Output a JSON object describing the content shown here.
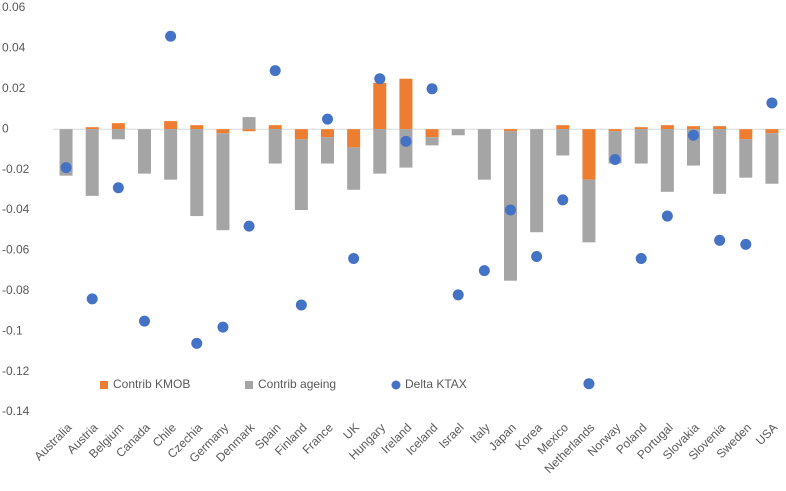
{
  "chart_data": {
    "type": "bar",
    "categories": [
      "Australia",
      "Austria",
      "Belgium",
      "Canada",
      "Chile",
      "Czechia",
      "Germany",
      "Denmark",
      "Spain",
      "Finland",
      "France",
      "UK",
      "Hungary",
      "Ireland",
      "Iceland",
      "Israel",
      "Italy",
      "Japan",
      "Korea",
      "Mexico",
      "Netherlands",
      "Norway",
      "Poland",
      "Portugal",
      "Slovakia",
      "Slovenia",
      "Sweden",
      "USA"
    ],
    "series": [
      {
        "name": "Contrib KMOB",
        "type": "bar",
        "color": "#ed7d31",
        "values": [
          0,
          0.001,
          0.003,
          0,
          0.004,
          0.002,
          -0.002,
          -0.001,
          0.002,
          -0.005,
          -0.004,
          -0.009,
          0.023,
          0.025,
          -0.004,
          0,
          0,
          -0.001,
          0,
          0.002,
          -0.025,
          -0.001,
          0.001,
          0.002,
          0.0015,
          0.0015,
          -0.005,
          -0.002
        ]
      },
      {
        "name": "Contrib ageing",
        "type": "bar",
        "color": "#a5a5a5",
        "values": [
          -0.023,
          -0.033,
          -0.005,
          -0.022,
          -0.025,
          -0.043,
          -0.048,
          0.006,
          -0.017,
          -0.035,
          -0.013,
          -0.021,
          -0.022,
          -0.019,
          -0.004,
          -0.003,
          -0.025,
          -0.074,
          -0.051,
          -0.013,
          -0.031,
          -0.016,
          -0.017,
          -0.031,
          -0.018,
          -0.032,
          -0.019,
          -0.025
        ]
      },
      {
        "name": "Delta KTAX",
        "type": "scatter",
        "color": "#4472c4",
        "values": [
          -0.019,
          -0.084,
          -0.029,
          -0.095,
          0.046,
          -0.106,
          -0.098,
          -0.048,
          0.029,
          -0.087,
          0.005,
          -0.064,
          0.025,
          -0.006,
          0.02,
          -0.082,
          -0.07,
          -0.04,
          -0.063,
          -0.035,
          -0.126,
          -0.015,
          -0.064,
          -0.043,
          -0.003,
          -0.055,
          -0.057,
          0.013
        ]
      }
    ],
    "ylim": [
      -0.14,
      0.06
    ],
    "yticks": [
      -0.14,
      -0.12,
      -0.1,
      -0.08,
      -0.06,
      -0.04,
      -0.02,
      0,
      0.02,
      0.04,
      0.06
    ],
    "grid": false
  }
}
